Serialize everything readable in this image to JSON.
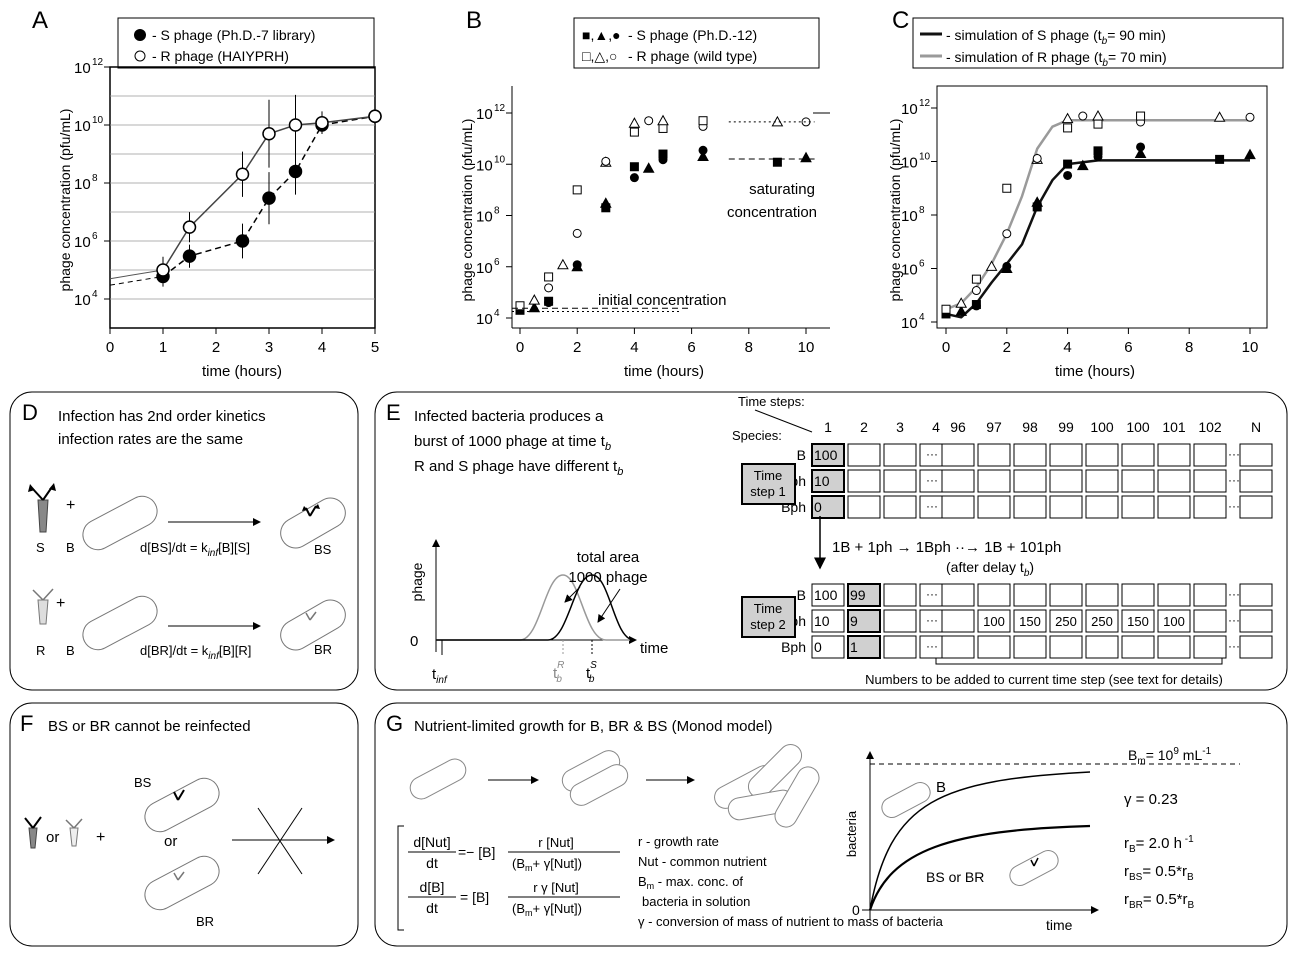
{
  "panelA": {
    "letter": "A",
    "legend": [
      "- S phage (Ph.D.-7 library)",
      "- R phage (HAIYPRH)"
    ],
    "ylabel": "phage concentration (pfu/mL)",
    "xlabel": "time (hours)",
    "xticks": [
      "0",
      "1",
      "2",
      "3",
      "4",
      "5"
    ],
    "yticks": [
      "4",
      "6",
      "8",
      "10",
      "12"
    ]
  },
  "panelB": {
    "letter": "B",
    "legend_markers": [
      "■,▲,●",
      "□,△,○"
    ],
    "legend": [
      "- S phage (Ph.D.-12)",
      "- R phage (wild type)"
    ],
    "ylabel": "phage concentration (pfu/mL)",
    "xlabel": "time (hours)",
    "xticks": [
      "0",
      "2",
      "4",
      "6",
      "8",
      "10"
    ],
    "yticks": [
      "4",
      "6",
      "8",
      "10",
      "12"
    ],
    "annot_saturating": [
      "saturating",
      "concentration"
    ],
    "annot_initial": "initial concentration"
  },
  "panelC": {
    "letter": "C",
    "legend": [
      "- simulation of S phage (t",
      "= 90 min)",
      "- simulation of R phage (t",
      "= 70 min)"
    ],
    "ylabel": "phage concentration (pfu/mL)",
    "xlabel": "time (hours)",
    "xticks": [
      "0",
      "2",
      "4",
      "6",
      "8",
      "10"
    ],
    "yticks": [
      "4",
      "6",
      "8",
      "10",
      "12"
    ]
  },
  "colors": {
    "s_curve": "#111111",
    "r_curve": "#9a9a9a",
    "box_fill": "#d0d0d0"
  },
  "chart_data": [
    {
      "type": "line",
      "title": "A",
      "xlabel": "time (hours)",
      "ylabel": "phage concentration (pfu/mL)",
      "xlim": [
        0,
        5
      ],
      "ylim": [
        1000.0,
        1000000000000.0
      ],
      "yscale": "log",
      "series": [
        {
          "name": "S phage (Ph.D.-7 library)",
          "x": [
            1,
            1.5,
            2.5,
            3,
            3.5,
            4,
            5
          ],
          "y": [
            60000.0,
            300000.0,
            1000000.0,
            30000000.0,
            250000000.0,
            10000000000.0,
            20000000000.0
          ]
        },
        {
          "name": "R phage (HAIYPRH)",
          "x": [
            1,
            1.5,
            2.5,
            3,
            3.5,
            4,
            5
          ],
          "y": [
            100000.0,
            3000000.0,
            200000000.0,
            5000000000.0,
            10000000000.0,
            12000000000.0,
            20000000000.0
          ]
        }
      ]
    },
    {
      "type": "scatter",
      "title": "B",
      "xlabel": "time (hours)",
      "ylabel": "phage concentration (pfu/mL)",
      "xlim": [
        0,
        10
      ],
      "ylim": [
        10000.0,
        1000000000000.0
      ],
      "yscale": "log",
      "series": [
        {
          "name": "S phage (Ph.D.-12)",
          "x": [
            0,
            0.5,
            1,
            1,
            2,
            2,
            3,
            3,
            4,
            4,
            4.5,
            5,
            5,
            6.4,
            6.4,
            9,
            10
          ],
          "y": [
            20000.0,
            25000.0,
            40000.0,
            45000.0,
            1000000.0,
            1200000.0,
            200000000.0,
            300000000.0,
            3000000000.0,
            8000000000.0,
            7000000000.0,
            15000000000.0,
            25000000000.0,
            20000000000.0,
            35000000000.0,
            12000000000.0,
            18000000000.0
          ]
        },
        {
          "name": "R phage (wild type)",
          "x": [
            0,
            0.5,
            1,
            1,
            1.5,
            2,
            2,
            3,
            3,
            4,
            4,
            4.5,
            5,
            5,
            6.4,
            6.4,
            9,
            10
          ],
          "y": [
            30000.0,
            50000.0,
            150000.0,
            400000.0,
            1200000.0,
            20000000.0,
            1000000000.0,
            12000000000.0,
            13000000000.0,
            180000000000.0,
            400000000000.0,
            500000000000.0,
            250000000000.0,
            500000000000.0,
            300000000000.0,
            500000000000.0,
            450000000000.0,
            450000000000.0
          ]
        }
      ]
    },
    {
      "type": "line",
      "title": "C",
      "xlabel": "time (hours)",
      "ylabel": "phage concentration (pfu/mL)",
      "xlim": [
        0,
        10
      ],
      "ylim": [
        10000.0,
        1000000000000.0
      ],
      "yscale": "log",
      "series": [
        {
          "name": "simulation of S phage",
          "x": [
            0,
            0.5,
            1,
            1.5,
            2,
            2.5,
            3,
            3.5,
            4,
            5,
            10
          ],
          "y": [
            20000.0,
            15000.0,
            50000.0,
            300000.0,
            1500000.0,
            8000000.0,
            200000000.0,
            2000000000.0,
            8000000000.0,
            11000000000.0,
            11000000000.0
          ]
        },
        {
          "name": "simulation of R phage",
          "x": [
            0,
            0.5,
            1,
            1.5,
            2,
            2.5,
            3,
            3.5,
            4,
            5,
            10
          ],
          "y": [
            30000.0,
            50000.0,
            200000.0,
            1500000.0,
            20000000.0,
            500000000.0,
            30000000000.0,
            200000000000.0,
            350000000000.0,
            350000000000.0,
            350000000000.0
          ]
        }
      ]
    }
  ],
  "panelD": {
    "letter": "D",
    "text1": "Infection has 2nd order kinetics",
    "text2": "infection rates are the same",
    "S": "S",
    "R": "R",
    "B": "B",
    "plus": "+",
    "BS": "BS",
    "BR": "BR",
    "eq1_a": "d[BS]/dt = k",
    "eq1_sub": "inf",
    "eq1_b": "[B][S]",
    "eq2_a": "d[BR]/dt = k",
    "eq2_sub": "inf",
    "eq2_b": "[B][R]"
  },
  "panelE": {
    "letter": "E",
    "text1": "Infected bacteria produces a",
    "text2": "burst of 1000 phage at time t",
    "text3": "R and S phage have different t",
    "sub_b": "b",
    "timesteps_label": "Time steps:",
    "species_label": "Species:",
    "col_headers_left": [
      "1",
      "2",
      "3",
      "4"
    ],
    "col_headers_right": [
      "96",
      "97",
      "98",
      "99",
      "100",
      "100",
      "101",
      "102"
    ],
    "col_N": "N",
    "ts1_label": [
      "Time",
      "step 1"
    ],
    "ts2_label": [
      "Time",
      "step 2"
    ],
    "rows": [
      "B",
      "ph",
      "Bph"
    ],
    "ts1_values": [
      "100",
      "10",
      "0"
    ],
    "ts2_col1": [
      "100",
      "10",
      "0"
    ],
    "ts2_col2": [
      "99",
      "9",
      "1"
    ],
    "ts2_ph_right": [
      "100",
      "150",
      "250",
      "250",
      "150",
      "100"
    ],
    "reaction": "1B + 1ph → 1Bph ··→ 1B + 101ph",
    "delay": "(after delay t",
    "delay_end": ")",
    "footnote": "Numbers to be added to current time step (see text for details)",
    "plot_ylabel": "phage",
    "plot_xlabel": "time",
    "plot_zero": "0",
    "total_area": [
      "total area",
      "1000 phage"
    ],
    "t_inf": "t",
    "t_inf_sub": "inf",
    "t_bR": "t",
    "t_bR_sup": "R",
    "t_bR_sub": "b",
    "t_bS": "t",
    "t_bS_sup": "S",
    "t_bS_sub": "b"
  },
  "panelF": {
    "letter": "F",
    "text": "BS or BR cannot be reinfected",
    "or1": "or",
    "plus": "+",
    "or2": "or",
    "BS": "BS",
    "BR": "BR"
  },
  "panelG": {
    "letter": "G",
    "title": "Nutrient-limited growth for B, BR & BS (Monod model)",
    "eq1_lhs_num": "d[Nut]",
    "eq1_lhs_den": "dt",
    "eq1_mid": "=− [B]",
    "eq1_num": "r [Nut]",
    "eq1_den": "(B",
    "eq1_den_sub": "m",
    "eq1_den_end": "+ γ[Nut])",
    "eq2_lhs_num": "d[B]",
    "eq2_lhs_den": "dt",
    "eq2_mid": "= [B]",
    "eq2_num": "r γ [Nut]",
    "eq2_den": "(B",
    "eq2_den_sub": "m",
    "eq2_den_end": "+ γ[Nut])",
    "defs": [
      "r - growth rate",
      "Nut - common nutrient",
      "B",
      " - max. conc. of",
      "bacteria in solution",
      "γ - conversion of mass of nutrient to mass of bacteria"
    ],
    "defs_sub": "m",
    "plot_ylabel": "bacteria",
    "plot_xlabel": "time",
    "plot_zero": "0",
    "label_B": "B",
    "label_BSBR": "BS or BR",
    "Bm": "B",
    "Bm_sub": "m",
    "Bm_eq": "= 10",
    "Bm_exp": "9",
    "Bm_unit": " mL",
    "Bm_unit_exp": "-1",
    "gamma": "γ = 0.23",
    "rB": "r",
    "rB_sub": "B",
    "rB_val": "= 2.0 h",
    "rB_exp": " -1",
    "rBS": "r",
    "rBS_sub": "BS",
    "rBS_val": "= 0.5*r",
    "rBS_val_sub": "B",
    "rBR": "r",
    "rBR_sub": "BR",
    "rBR_val": "= 0.5*r",
    "rBR_val_sub": "B"
  }
}
